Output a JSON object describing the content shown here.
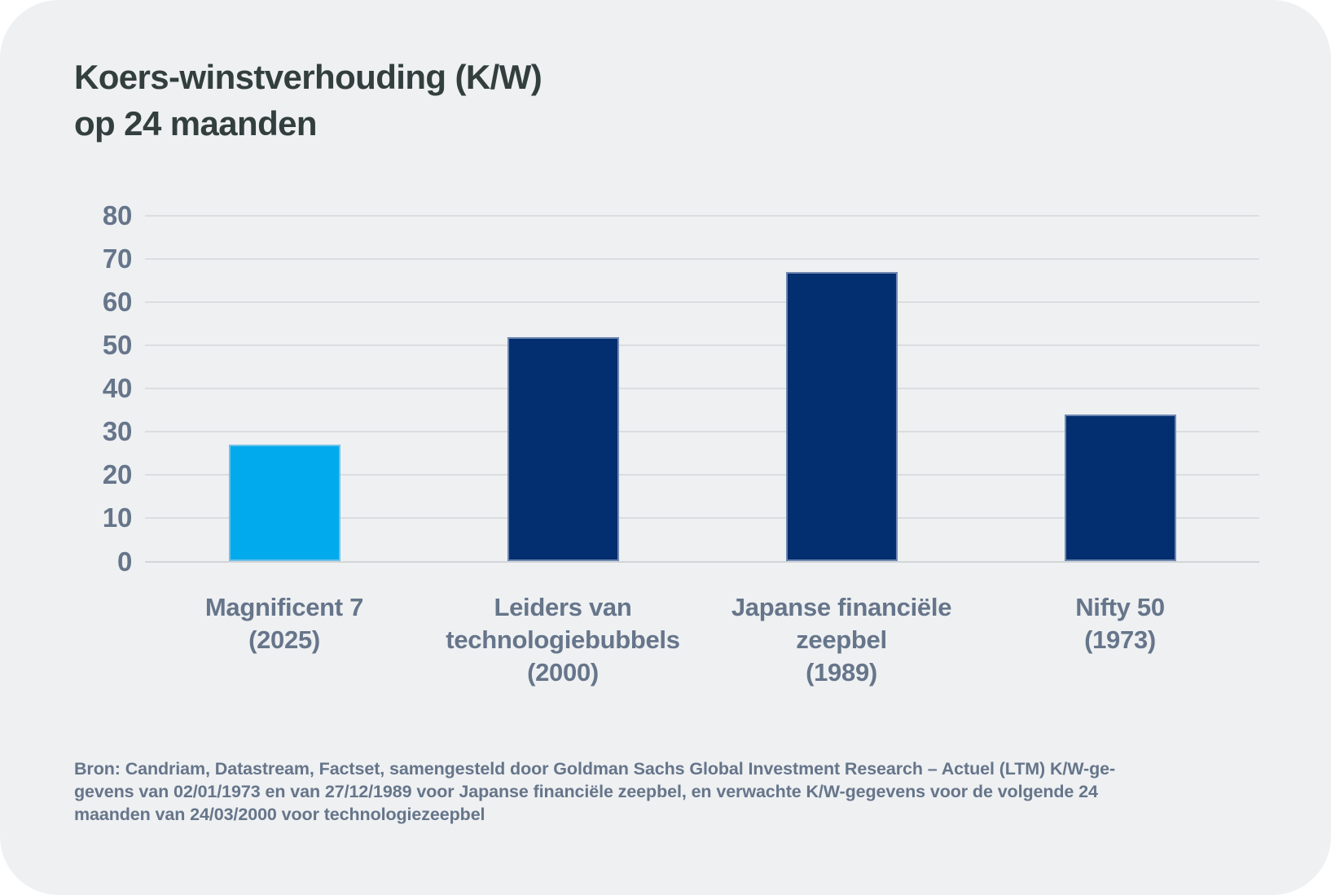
{
  "header": {
    "title": "Koers-winstverhouding (K/W)\nop 24 maanden"
  },
  "footer": {
    "text": "Bron: Candriam, Datastream, Factset, samengesteld door Goldman Sachs Global Investment Research – Actuel (LTM) K/W-ge-\ngevens van 02/01/1973 en van 27/12/1989 voor Japanse financiële zeepbel, en verwachte K/W-gegevens voor de volgende 24\nmaanden van 24/03/2000 voor technologiezeepbel"
  },
  "colors": {
    "background": "#eef0f2",
    "bar_highlight": "#00aaec",
    "bar_default": "#032e70",
    "title_text": "#333f3d",
    "axis_text": "#66758a",
    "gridline": "#dbdee0",
    "zero_line": "#d2d5d8"
  },
  "chart_data": {
    "type": "bar",
    "title": "Koers-winstverhouding (K/W) op 24 maanden",
    "categories": [
      "Magnificent 7\n(2025)",
      "Leiders van\ntechnologiebubbels\n(2000)",
      "Japanse financiële\nzeepbel\n(1989)",
      "Nifty 50\n(1973)"
    ],
    "category_keys": [
      "magnificent-7-2025",
      "leiders-van-technologiebubbels-2000",
      "japanse-financiele-zeepbel-1989",
      "nifty-50-1973"
    ],
    "values": [
      27,
      52,
      67,
      34
    ],
    "bar_colors": [
      "#00aaec",
      "#032e70",
      "#032e70",
      "#032e70"
    ],
    "xlabel": "",
    "ylabel": "",
    "ylim": [
      0,
      80
    ],
    "ytick_step": 10,
    "yticks": [
      "0",
      "10",
      "20",
      "30",
      "40",
      "50",
      "60",
      "70",
      "80"
    ],
    "grid": true,
    "legend": "none"
  }
}
